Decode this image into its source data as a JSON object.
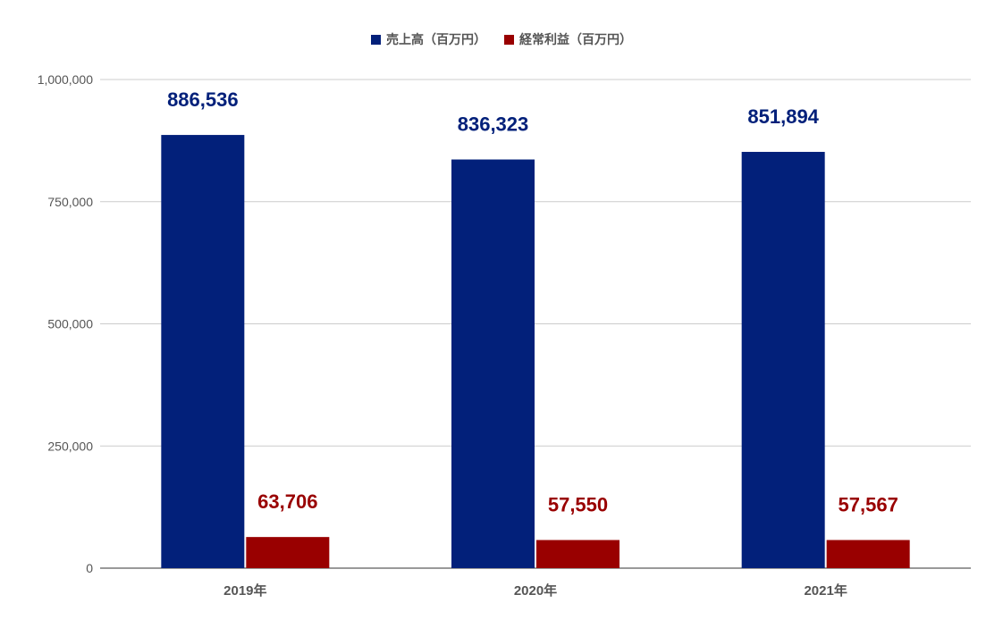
{
  "chart_data": {
    "type": "bar",
    "categories": [
      "2019年",
      "2020年",
      "2021年"
    ],
    "series": [
      {
        "name": "売上高（百万円）",
        "color": "#02207a",
        "values": [
          886536,
          836323,
          851894
        ],
        "labels": [
          "886,536",
          "836,323",
          "851,894"
        ]
      },
      {
        "name": "経常利益（百万円）",
        "color": "#990000",
        "values": [
          63706,
          57550,
          57567
        ],
        "labels": [
          "63,706",
          "57,550",
          "57,567"
        ]
      }
    ],
    "ylim": [
      0,
      1000000
    ],
    "yticks": [
      0,
      250000,
      500000,
      750000,
      1000000
    ],
    "ytick_labels": [
      "0",
      "250,000",
      "500,000",
      "750,000",
      "1,000,000"
    ],
    "grid": true,
    "legend_position": "top"
  }
}
